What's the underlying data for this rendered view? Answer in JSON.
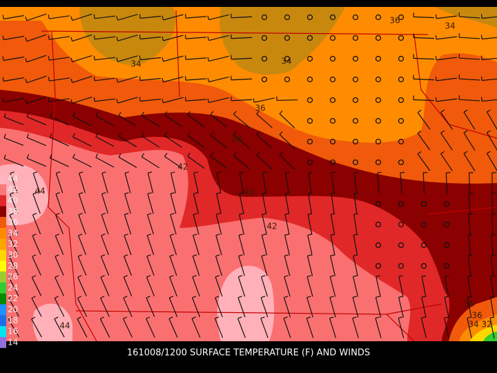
{
  "title": "161008/1200 SURFACE TEMPERATURE (F) AND WINDS",
  "contour_labels": [
    "36",
    "34",
    "34",
    "34",
    "36",
    "38",
    "42",
    "44",
    "40",
    "42",
    "36",
    "36",
    "34",
    "32",
    "44"
  ],
  "legend": [
    {
      "label": "44",
      "color": "#ffb6c1"
    },
    {
      "label": "42",
      "color": "#fa7878"
    },
    {
      "label": "40",
      "color": "#e02828"
    },
    {
      "label": "38",
      "color": "#8b0000"
    },
    {
      "label": "36",
      "color": "#f05a0a"
    },
    {
      "label": "34",
      "color": "#ff8c00"
    },
    {
      "label": "32",
      "color": "#ffa500"
    },
    {
      "label": "30",
      "color": "#ffd700"
    },
    {
      "label": "28",
      "color": "#ffff00"
    },
    {
      "label": "26",
      "color": "#9acd32"
    },
    {
      "label": "24",
      "color": "#32cd32"
    },
    {
      "label": "22",
      "color": "#008b00"
    },
    {
      "label": "20",
      "color": "#1e90ff"
    },
    {
      "label": "18",
      "color": "#1c6fe8"
    },
    {
      "label": "16",
      "color": "#00e5ee"
    },
    {
      "label": "14",
      "color": "#9370db"
    }
  ]
}
